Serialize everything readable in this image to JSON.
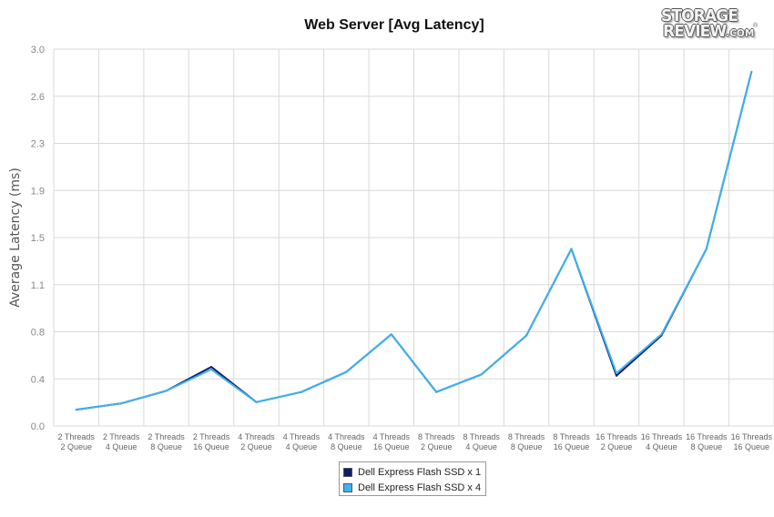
{
  "chart_data": {
    "type": "line",
    "title": "Web Server [Avg Latency]",
    "xlabel": "",
    "ylabel": "Average Latency (ms)",
    "ylim": [
      0,
      3.0
    ],
    "yticks": [
      "0.0",
      "0.4",
      "0.8",
      "1.1",
      "1.5",
      "1.9",
      "2.3",
      "2.6",
      "3.0"
    ],
    "grid": true,
    "legend_position": "bottom-center",
    "categories": [
      [
        "2 Threads",
        "2 Queue"
      ],
      [
        "2 Threads",
        "4 Queue"
      ],
      [
        "2 Threads",
        "8 Queue"
      ],
      [
        "2 Threads",
        "16 Queue"
      ],
      [
        "4 Threads",
        "2 Queue"
      ],
      [
        "4 Threads",
        "4 Queue"
      ],
      [
        "4 Threads",
        "8 Queue"
      ],
      [
        "4 Threads",
        "16 Queue"
      ],
      [
        "8 Threads",
        "2 Queue"
      ],
      [
        "8 Threads",
        "4 Queue"
      ],
      [
        "8 Threads",
        "8 Queue"
      ],
      [
        "8 Threads",
        "16 Queue"
      ],
      [
        "16 Threads",
        "2 Queue"
      ],
      [
        "16 Threads",
        "4 Queue"
      ],
      [
        "16 Threads",
        "8 Queue"
      ],
      [
        "16 Threads",
        "16 Queue"
      ]
    ],
    "series": [
      {
        "name": "Dell Express Flash SSD x 1",
        "color": "#0d1f6b",
        "values": [
          0.13,
          0.18,
          0.28,
          0.47,
          0.19,
          0.27,
          0.43,
          0.73,
          0.27,
          0.41,
          0.72,
          1.41,
          0.4,
          0.72,
          1.41,
          2.82
        ]
      },
      {
        "name": "Dell Express Flash SSD x 4",
        "color": "#3fb2ee",
        "values": [
          0.13,
          0.18,
          0.28,
          0.45,
          0.19,
          0.27,
          0.43,
          0.73,
          0.27,
          0.41,
          0.72,
          1.41,
          0.42,
          0.73,
          1.41,
          2.82
        ]
      }
    ]
  },
  "logo": {
    "line1": "STORAGE",
    "line2": "REVIEW",
    "dotcom": ".COM",
    "reg": "®"
  }
}
